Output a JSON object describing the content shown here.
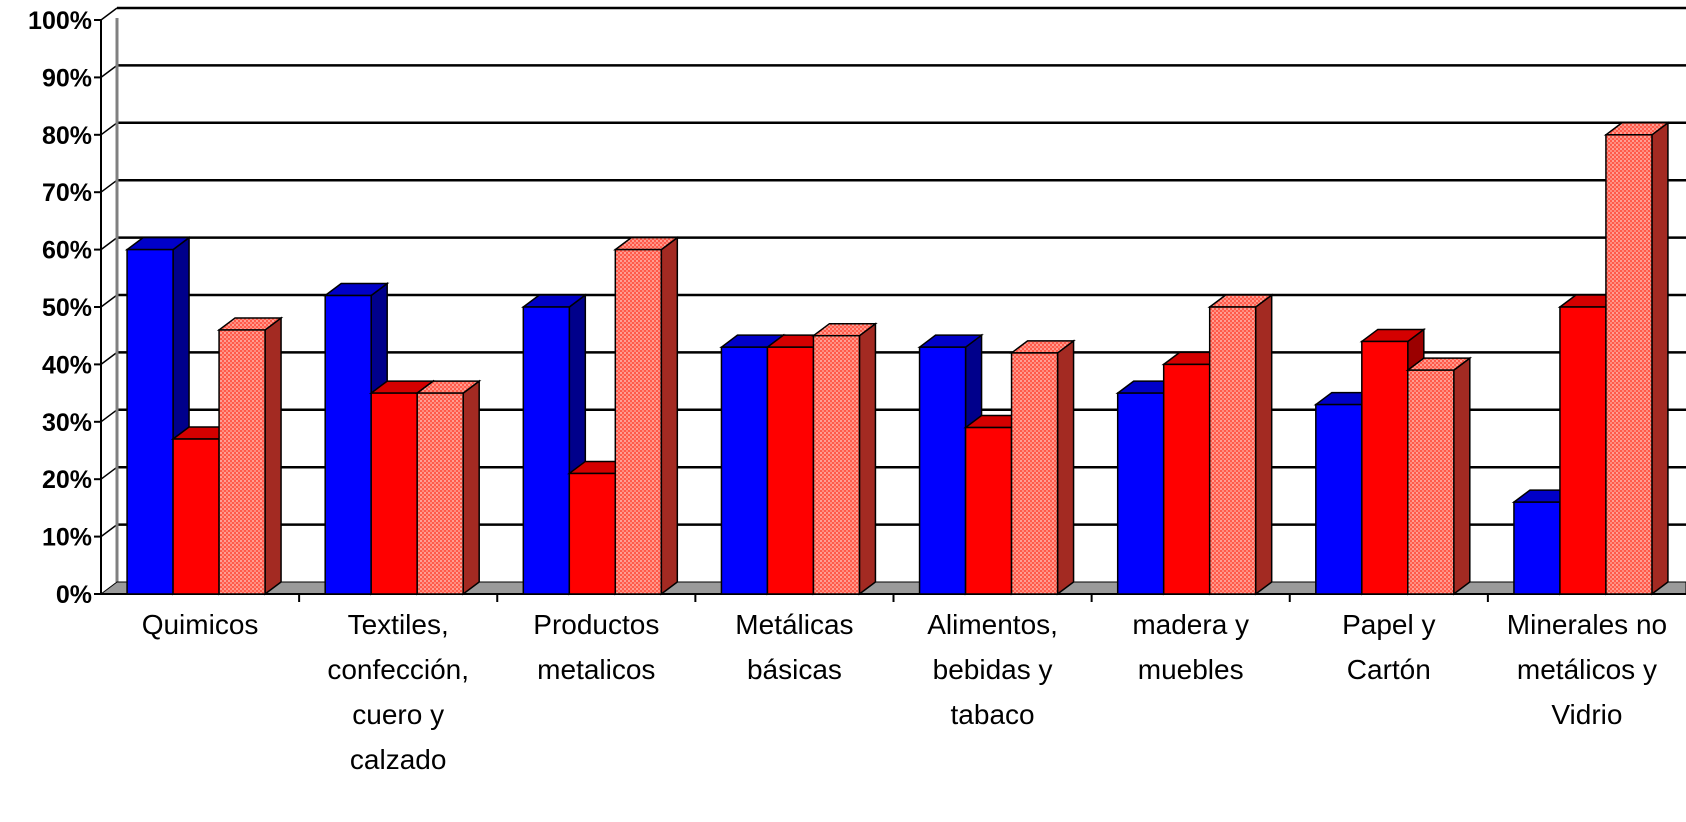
{
  "chart_data": {
    "type": "bar",
    "title": "",
    "xlabel": "",
    "ylabel": "",
    "ylim": [
      0,
      100
    ],
    "y_ticks": [
      "0%",
      "10%",
      "20%",
      "30%",
      "40%",
      "50%",
      "60%",
      "70%",
      "80%",
      "90%",
      "100%"
    ],
    "grid": true,
    "legend": "none",
    "categories": [
      [
        "Quimicos"
      ],
      [
        "Textiles,",
        "confección,",
        "cuero y",
        "calzado"
      ],
      [
        "Productos",
        "metalicos"
      ],
      [
        "Metálicas",
        "básicas"
      ],
      [
        "Alimentos,",
        "bebidas y",
        "tabaco"
      ],
      [
        "madera y",
        "muebles"
      ],
      [
        "Papel y",
        "Cartón"
      ],
      [
        "Minerales no",
        "metálicos y",
        "Vidrio"
      ]
    ],
    "series": [
      {
        "values": [
          60,
          52,
          50,
          43,
          43,
          35,
          33,
          16
        ],
        "color": "#0000ff",
        "side_color": "#00008b",
        "pattern": "solid"
      },
      {
        "values": [
          27,
          35,
          21,
          43,
          29,
          40,
          44,
          50
        ],
        "color": "#ff0000",
        "side_color": "#9b0000",
        "pattern": "solid"
      },
      {
        "values": [
          46,
          35,
          60,
          45,
          42,
          50,
          39,
          80
        ],
        "color": "#ff6a5c",
        "side_color": "#a32a22",
        "pattern": "dotted"
      }
    ]
  }
}
